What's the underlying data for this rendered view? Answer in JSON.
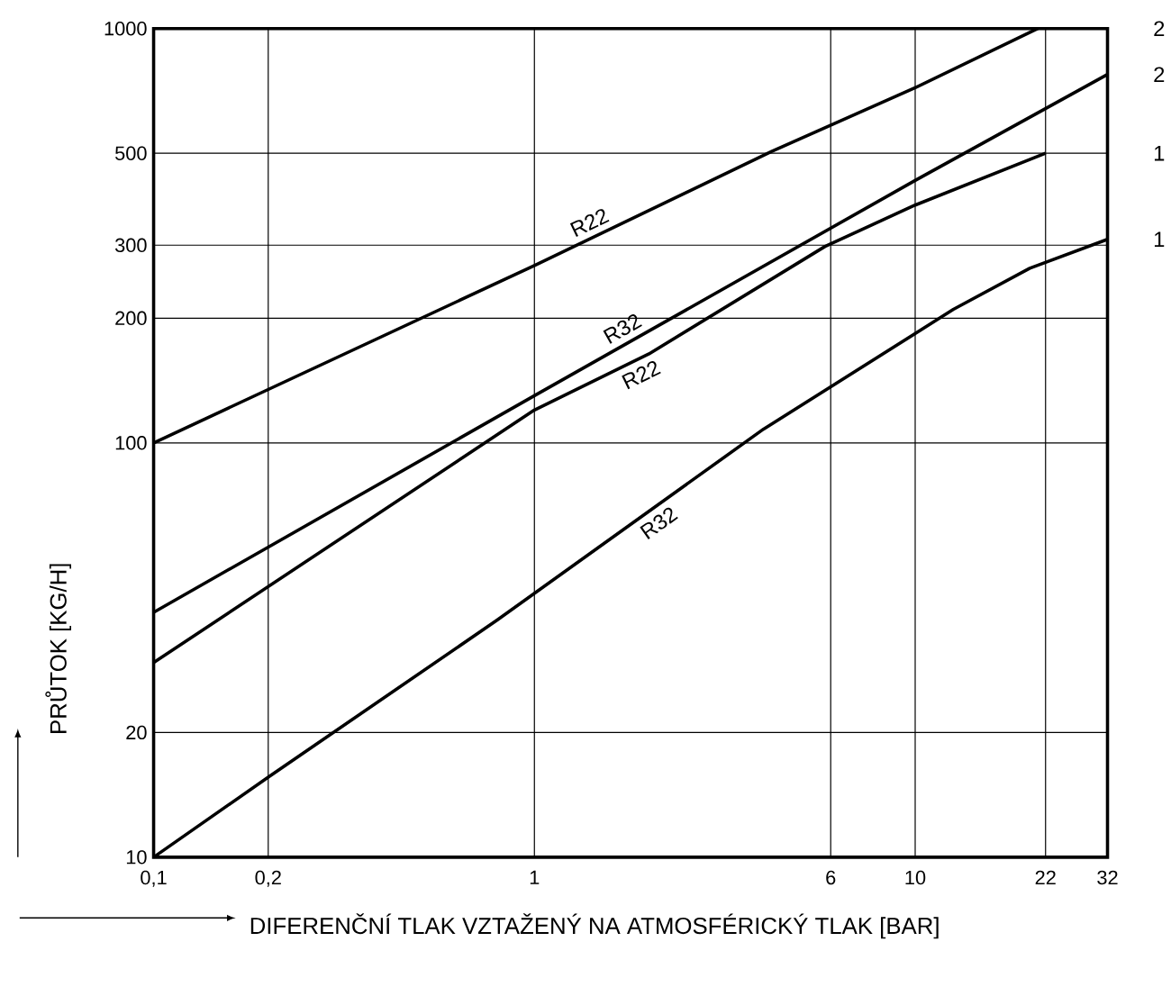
{
  "chart_data": {
    "type": "line",
    "log": "xy",
    "xlabel": "DIFERENČNÍ TLAK VZTAŽENÝ NA ATMOSFÉRICKÝ TLAK [BAR]",
    "ylabel": "PRŮTOK [KG/H]",
    "xlim": [
      0.1,
      32
    ],
    "ylim": [
      10,
      1000
    ],
    "xticks": [
      {
        "value": 0.1,
        "label": "0,1"
      },
      {
        "value": 0.2,
        "label": "0,2"
      },
      1,
      6,
      10,
      22,
      32
    ],
    "yticks": [
      10,
      20,
      100,
      200,
      300,
      500,
      1000
    ],
    "grid": true,
    "marker": "none",
    "line_style": "solid",
    "series": [
      {
        "name": "R22",
        "color": "#000000",
        "x": [
          0.1,
          1,
          4.2,
          10,
          21
        ],
        "values": [
          100,
          268,
          505,
          720,
          1000
        ]
      },
      {
        "name": "R32",
        "color": "#000000",
        "x": [
          0.1,
          1,
          10,
          32
        ],
        "values": [
          39,
          130,
          430,
          775
        ]
      },
      {
        "name": "R22",
        "color": "#000000",
        "x": [
          0.1,
          1,
          2,
          5.8,
          10,
          22
        ],
        "values": [
          29.5,
          120,
          164,
          298,
          375,
          500
        ]
      },
      {
        "name": "R32",
        "color": "#000000",
        "x": [
          0.1,
          0.2,
          0.8,
          4,
          12.6,
          20,
          32
        ],
        "values": [
          10,
          15.6,
          37.4,
          108,
          210,
          264,
          310
        ]
      }
    ],
    "annotations": [
      "2",
      "2",
      "1",
      "1"
    ]
  }
}
